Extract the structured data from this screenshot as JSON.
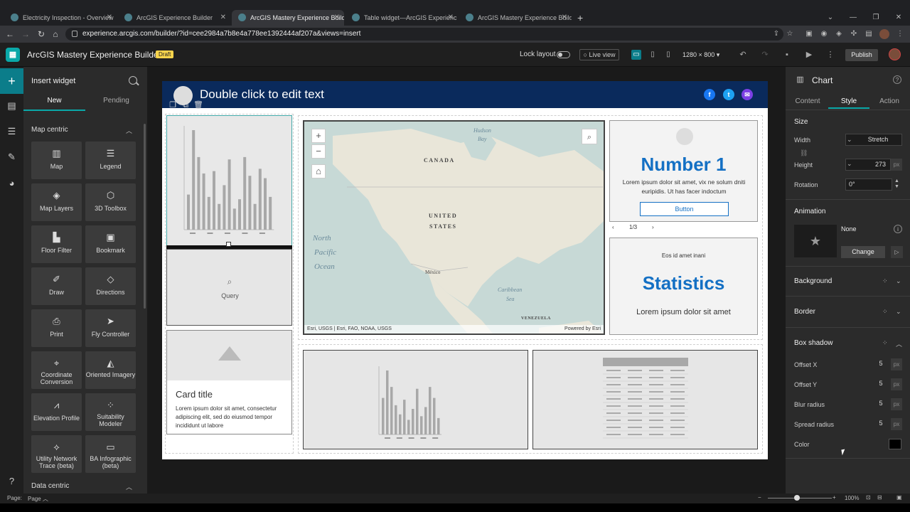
{
  "browser": {
    "tabs": [
      {
        "title": "Electricity Inspection - Overview"
      },
      {
        "title": "ArcGIS Experience Builder"
      },
      {
        "title": "ArcGIS Mastery Experience Build"
      },
      {
        "title": "Table widget—ArcGIS Experienc"
      },
      {
        "title": "ArcGIS Mastery Experience Build"
      }
    ],
    "active_tab": 2,
    "url": "experience.arcgis.com/builder/?id=cee2984a7b8e4a778ee1392444af207a&views=insert"
  },
  "app": {
    "title": "ArcGIS Mastery Experience Builder",
    "badge": "Draft",
    "lock_layout_label": "Lock layout",
    "live_view_label": "Live view",
    "resolution": "1280 × 800",
    "publish_label": "Publish"
  },
  "insert_panel": {
    "title": "Insert widget",
    "tabs": [
      "New",
      "Pending"
    ],
    "section": "Map centric",
    "section2": "Data centric",
    "widgets": [
      {
        "label": "Map",
        "icon": "map-icon"
      },
      {
        "label": "Legend",
        "icon": "legend-icon"
      },
      {
        "label": "Map Layers",
        "icon": "layers-icon"
      },
      {
        "label": "3D Toolbox",
        "icon": "cube-icon"
      },
      {
        "label": "Floor Filter",
        "icon": "floor-icon"
      },
      {
        "label": "Bookmark",
        "icon": "bookmark-icon"
      },
      {
        "label": "Draw",
        "icon": "draw-icon"
      },
      {
        "label": "Directions",
        "icon": "directions-icon"
      },
      {
        "label": "Print",
        "icon": "print-icon"
      },
      {
        "label": "Fly Controller",
        "icon": "fly-icon"
      },
      {
        "label": "Coordinate Conversion",
        "icon": "coordinate-icon"
      },
      {
        "label": "Oriented Imagery",
        "icon": "imagery-icon"
      },
      {
        "label": "Elevation Profile",
        "icon": "elevation-icon"
      },
      {
        "label": "Suitability Modeler",
        "icon": "suitability-icon"
      },
      {
        "label": "Utility Network Trace (beta)",
        "icon": "trace-icon"
      },
      {
        "label": "BA Infographic (beta)",
        "icon": "infographic-icon"
      }
    ]
  },
  "canvas": {
    "header_text": "Double click to edit text",
    "query_label": "Query",
    "card": {
      "title": "Card title",
      "body": "Lorem ipsum dolor sit amet, consectetur adipiscing elit, sed do eiusmod tempor incididunt ut labore"
    },
    "map": {
      "labels": [
        "CANADA",
        "UNITED",
        "STATES",
        "México",
        "Hudson",
        "Bay",
        "North",
        "Pacific",
        "Ocean",
        "Caribbean",
        "Sea",
        "VENEZUELA"
      ],
      "attribution": "Esri, USGS | Esri, FAO, NOAA, USGS",
      "powered": "Powered by Esri"
    },
    "number": {
      "title": "Number 1",
      "body": "Lorem ipsum dolor sit amet, vix ne solum dniti euripidis. Ut has facer indoctum",
      "button": "Button",
      "pager": "1/3"
    },
    "stats": {
      "subtitle": "Eos id amet inani",
      "title": "Statistics",
      "body": "Lorem ipsum dolor sit amet"
    }
  },
  "settings_panel": {
    "title": "Chart",
    "tabs": [
      "Content",
      "Style",
      "Action"
    ],
    "size_label": "Size",
    "width_label": "Width",
    "width_value": "Stretch",
    "height_label": "Height",
    "height_value": "273",
    "unit": "px",
    "rotation_label": "Rotation",
    "rotation_value": "0°",
    "animation_label": "Animation",
    "animation_value": "None",
    "change_label": "Change",
    "background_label": "Background",
    "border_label": "Border",
    "boxshadow_label": "Box shadow",
    "offset_x_label": "Offset X",
    "offset_x": "5",
    "offset_y_label": "Offset Y",
    "offset_y": "5",
    "blur_label": "Blur radius",
    "blur": "5",
    "spread_label": "Spread radius",
    "spread": "5",
    "color_label": "Color"
  },
  "statusbar": {
    "page_label": "Page:",
    "page_value": "Page",
    "zoom": "100%"
  },
  "mini_chart_a": [
    30,
    85,
    62,
    48,
    28,
    50,
    22,
    38,
    60,
    18,
    26,
    62,
    46,
    22,
    52,
    44,
    28
  ],
  "mini_chart_b": [
    40,
    70,
    52,
    32,
    22,
    38,
    16,
    28,
    50,
    20,
    30,
    52,
    40,
    18
  ]
}
